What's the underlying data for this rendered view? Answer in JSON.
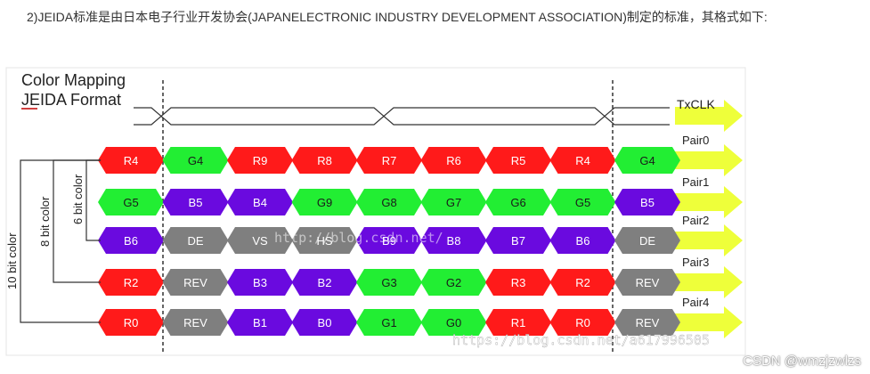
{
  "article": {
    "paragraph": "2)JEIDA标准是由日本电子行业开发协会(JAPANELECTRONIC INDUSTRY DEVELOPMENT ASSOCIATION)制定的标准，其格式如下:"
  },
  "diagram": {
    "title_line1": "Color Mapping",
    "title_line2": "JEIDA Format",
    "clock_label": "TxCLK",
    "overlay_text_1": "http://blog.csdn.net/",
    "overlay_text_2": "https://blog.csdn.net/a617996505",
    "colors": {
      "R": "#ff1a1a",
      "G": "#22ee33",
      "B": "#6a0adf",
      "K": "#7f7f7f",
      "arrow": "#eeff3a"
    },
    "bit_labels": [
      {
        "label": "10 bit color"
      },
      {
        "label": "8 bit color"
      },
      {
        "label": "6 bit color"
      }
    ],
    "pairs": [
      {
        "name": "Pair0",
        "cells": [
          {
            "text": "R4",
            "c": "R"
          },
          {
            "text": "G4",
            "c": "G"
          },
          {
            "text": "R9",
            "c": "R"
          },
          {
            "text": "R8",
            "c": "R"
          },
          {
            "text": "R7",
            "c": "R"
          },
          {
            "text": "R6",
            "c": "R"
          },
          {
            "text": "R5",
            "c": "R"
          },
          {
            "text": "R4",
            "c": "R"
          },
          {
            "text": "G4",
            "c": "G"
          }
        ]
      },
      {
        "name": "Pair1",
        "cells": [
          {
            "text": "G5",
            "c": "G"
          },
          {
            "text": "B5",
            "c": "B"
          },
          {
            "text": "B4",
            "c": "B"
          },
          {
            "text": "G9",
            "c": "G"
          },
          {
            "text": "G8",
            "c": "G"
          },
          {
            "text": "G7",
            "c": "G"
          },
          {
            "text": "G6",
            "c": "G"
          },
          {
            "text": "G5",
            "c": "G"
          },
          {
            "text": "B5",
            "c": "B"
          }
        ]
      },
      {
        "name": "Pair2",
        "cells": [
          {
            "text": "B6",
            "c": "B"
          },
          {
            "text": "DE",
            "c": "K"
          },
          {
            "text": "VS",
            "c": "K"
          },
          {
            "text": "HS",
            "c": "K"
          },
          {
            "text": "B9",
            "c": "B"
          },
          {
            "text": "B8",
            "c": "B"
          },
          {
            "text": "B7",
            "c": "B"
          },
          {
            "text": "B6",
            "c": "B"
          },
          {
            "text": "DE",
            "c": "K"
          }
        ]
      },
      {
        "name": "Pair3",
        "cells": [
          {
            "text": "R2",
            "c": "R"
          },
          {
            "text": "REV",
            "c": "K"
          },
          {
            "text": "B3",
            "c": "B"
          },
          {
            "text": "B2",
            "c": "B"
          },
          {
            "text": "G3",
            "c": "G"
          },
          {
            "text": "G2",
            "c": "G"
          },
          {
            "text": "R3",
            "c": "R"
          },
          {
            "text": "R2",
            "c": "R"
          },
          {
            "text": "REV",
            "c": "K"
          }
        ]
      },
      {
        "name": "Pair4",
        "cells": [
          {
            "text": "R0",
            "c": "R"
          },
          {
            "text": "REV",
            "c": "K"
          },
          {
            "text": "B1",
            "c": "B"
          },
          {
            "text": "B0",
            "c": "B"
          },
          {
            "text": "G1",
            "c": "G"
          },
          {
            "text": "G0",
            "c": "G"
          },
          {
            "text": "R1",
            "c": "R"
          },
          {
            "text": "R0",
            "c": "R"
          },
          {
            "text": "REV",
            "c": "K"
          }
        ]
      }
    ]
  },
  "watermark": "CSDN @wmzjzwlzs"
}
